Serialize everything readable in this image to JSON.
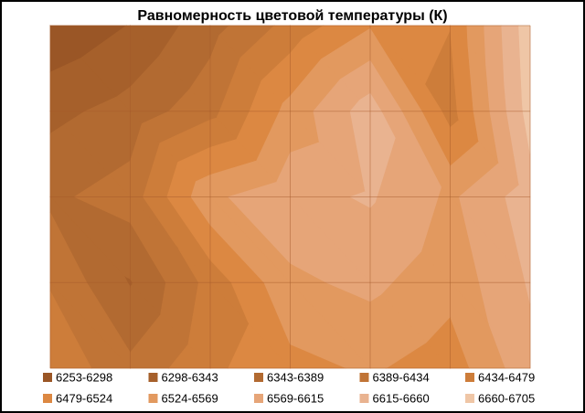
{
  "chart_data": {
    "type": "contour",
    "title": "Равномерность  цветовой температуры (К)",
    "levels": [
      6253,
      6298,
      6343,
      6389,
      6434,
      6479,
      6524,
      6569,
      6615,
      6660,
      6705
    ],
    "series": [
      {
        "name": "6253-6298",
        "color": "#9a5626"
      },
      {
        "name": "6298-6343",
        "color": "#a6602b"
      },
      {
        "name": "6343-6389",
        "color": "#b26a31"
      },
      {
        "name": "6389-6434",
        "color": "#c07436"
      },
      {
        "name": "6434-6479",
        "color": "#cd7d3a"
      },
      {
        "name": "6479-6524",
        "color": "#dc8842"
      },
      {
        "name": "6524-6569",
        "color": "#e2995f"
      },
      {
        "name": "6569-6615",
        "color": "#e6a578"
      },
      {
        "name": "6615-6660",
        "color": "#e9b390"
      },
      {
        "name": "6660-6705",
        "color": "#efc6a6"
      }
    ],
    "z": [
      [
        6260,
        6300,
        6370,
        6450,
        6520,
        6480,
        6690
      ],
      [
        6330,
        6360,
        6420,
        6540,
        6640,
        6460,
        6680
      ],
      [
        6380,
        6410,
        6560,
        6600,
        6620,
        6560,
        6640
      ],
      [
        6430,
        6340,
        6450,
        6560,
        6580,
        6540,
        6620
      ],
      [
        6470,
        6400,
        6470,
        6510,
        6530,
        6500,
        6600
      ]
    ],
    "grid": true
  }
}
